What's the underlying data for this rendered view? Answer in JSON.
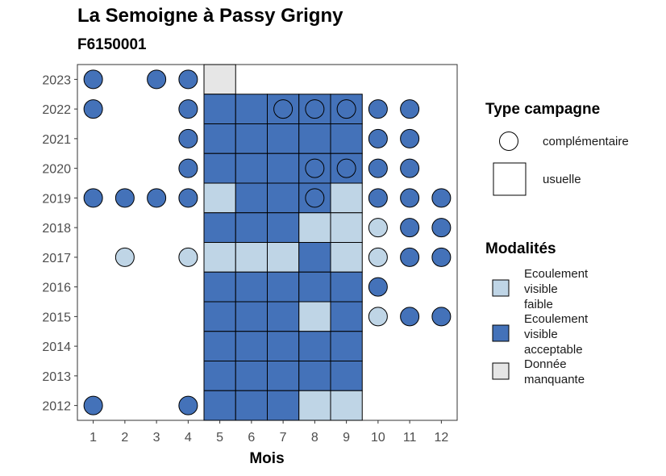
{
  "title": "La Semoigne à Passy Grigny",
  "subtitle": "F6150001",
  "colors": {
    "Ecoulement visible faible": "#bfd5e6",
    "Ecoulement visible acceptable": "#4472b9",
    "Donnée manquante": "#e6e6e6"
  },
  "chart_data": {
    "type": "heatmap",
    "xlabel": "Mois",
    "ylabel": "",
    "x_ticks": [
      1,
      2,
      3,
      4,
      5,
      6,
      7,
      8,
      9,
      10,
      11,
      12
    ],
    "y_ticks": [
      2012,
      2013,
      2014,
      2015,
      2016,
      2017,
      2018,
      2019,
      2020,
      2021,
      2022,
      2023
    ],
    "legend_type": {
      "title": "Type campagne",
      "items": [
        {
          "label": "complémentaire",
          "shape": "circle"
        },
        {
          "label": "usuelle",
          "shape": "square"
        }
      ]
    },
    "legend_modalites": {
      "title": "Modalités",
      "items": [
        {
          "label": "Ecoulement visible faible"
        },
        {
          "label": "Ecoulement visible acceptable"
        },
        {
          "label": "Donnée manquante"
        }
      ]
    },
    "usuelle": [
      {
        "year": 2023,
        "month": 5,
        "mod": "Donnée manquante"
      },
      {
        "year": 2022,
        "month": 5,
        "mod": "Ecoulement visible acceptable"
      },
      {
        "year": 2022,
        "month": 6,
        "mod": "Ecoulement visible acceptable"
      },
      {
        "year": 2022,
        "month": 7,
        "mod": "Ecoulement visible acceptable"
      },
      {
        "year": 2022,
        "month": 8,
        "mod": "Ecoulement visible acceptable"
      },
      {
        "year": 2022,
        "month": 9,
        "mod": "Ecoulement visible acceptable"
      },
      {
        "year": 2021,
        "month": 5,
        "mod": "Ecoulement visible acceptable"
      },
      {
        "year": 2021,
        "month": 6,
        "mod": "Ecoulement visible acceptable"
      },
      {
        "year": 2021,
        "month": 7,
        "mod": "Ecoulement visible acceptable"
      },
      {
        "year": 2021,
        "month": 8,
        "mod": "Ecoulement visible acceptable"
      },
      {
        "year": 2021,
        "month": 9,
        "mod": "Ecoulement visible acceptable"
      },
      {
        "year": 2020,
        "month": 5,
        "mod": "Ecoulement visible acceptable"
      },
      {
        "year": 2020,
        "month": 6,
        "mod": "Ecoulement visible acceptable"
      },
      {
        "year": 2020,
        "month": 7,
        "mod": "Ecoulement visible acceptable"
      },
      {
        "year": 2020,
        "month": 8,
        "mod": "Ecoulement visible acceptable"
      },
      {
        "year": 2020,
        "month": 9,
        "mod": "Ecoulement visible acceptable"
      },
      {
        "year": 2019,
        "month": 5,
        "mod": "Ecoulement visible faible"
      },
      {
        "year": 2019,
        "month": 6,
        "mod": "Ecoulement visible acceptable"
      },
      {
        "year": 2019,
        "month": 7,
        "mod": "Ecoulement visible acceptable"
      },
      {
        "year": 2019,
        "month": 8,
        "mod": "Ecoulement visible acceptable"
      },
      {
        "year": 2019,
        "month": 9,
        "mod": "Ecoulement visible faible"
      },
      {
        "year": 2018,
        "month": 5,
        "mod": "Ecoulement visible acceptable"
      },
      {
        "year": 2018,
        "month": 6,
        "mod": "Ecoulement visible acceptable"
      },
      {
        "year": 2018,
        "month": 7,
        "mod": "Ecoulement visible acceptable"
      },
      {
        "year": 2018,
        "month": 8,
        "mod": "Ecoulement visible faible"
      },
      {
        "year": 2018,
        "month": 9,
        "mod": "Ecoulement visible faible"
      },
      {
        "year": 2017,
        "month": 5,
        "mod": "Ecoulement visible faible"
      },
      {
        "year": 2017,
        "month": 6,
        "mod": "Ecoulement visible faible"
      },
      {
        "year": 2017,
        "month": 7,
        "mod": "Ecoulement visible faible"
      },
      {
        "year": 2017,
        "month": 8,
        "mod": "Ecoulement visible acceptable"
      },
      {
        "year": 2017,
        "month": 9,
        "mod": "Ecoulement visible faible"
      },
      {
        "year": 2016,
        "month": 5,
        "mod": "Ecoulement visible acceptable"
      },
      {
        "year": 2016,
        "month": 6,
        "mod": "Ecoulement visible acceptable"
      },
      {
        "year": 2016,
        "month": 7,
        "mod": "Ecoulement visible acceptable"
      },
      {
        "year": 2016,
        "month": 8,
        "mod": "Ecoulement visible acceptable"
      },
      {
        "year": 2016,
        "month": 9,
        "mod": "Ecoulement visible acceptable"
      },
      {
        "year": 2015,
        "month": 5,
        "mod": "Ecoulement visible acceptable"
      },
      {
        "year": 2015,
        "month": 6,
        "mod": "Ecoulement visible acceptable"
      },
      {
        "year": 2015,
        "month": 7,
        "mod": "Ecoulement visible acceptable"
      },
      {
        "year": 2015,
        "month": 8,
        "mod": "Ecoulement visible faible"
      },
      {
        "year": 2015,
        "month": 9,
        "mod": "Ecoulement visible acceptable"
      },
      {
        "year": 2014,
        "month": 5,
        "mod": "Ecoulement visible acceptable"
      },
      {
        "year": 2014,
        "month": 6,
        "mod": "Ecoulement visible acceptable"
      },
      {
        "year": 2014,
        "month": 7,
        "mod": "Ecoulement visible acceptable"
      },
      {
        "year": 2014,
        "month": 8,
        "mod": "Ecoulement visible acceptable"
      },
      {
        "year": 2014,
        "month": 9,
        "mod": "Ecoulement visible acceptable"
      },
      {
        "year": 2013,
        "month": 5,
        "mod": "Ecoulement visible acceptable"
      },
      {
        "year": 2013,
        "month": 6,
        "mod": "Ecoulement visible acceptable"
      },
      {
        "year": 2013,
        "month": 7,
        "mod": "Ecoulement visible acceptable"
      },
      {
        "year": 2013,
        "month": 8,
        "mod": "Ecoulement visible acceptable"
      },
      {
        "year": 2013,
        "month": 9,
        "mod": "Ecoulement visible acceptable"
      },
      {
        "year": 2012,
        "month": 5,
        "mod": "Ecoulement visible acceptable"
      },
      {
        "year": 2012,
        "month": 6,
        "mod": "Ecoulement visible acceptable"
      },
      {
        "year": 2012,
        "month": 7,
        "mod": "Ecoulement visible acceptable"
      },
      {
        "year": 2012,
        "month": 8,
        "mod": "Ecoulement visible faible"
      },
      {
        "year": 2012,
        "month": 9,
        "mod": "Ecoulement visible faible"
      }
    ],
    "complementaire": [
      {
        "year": 2023,
        "month": 1,
        "mod": "Ecoulement visible acceptable"
      },
      {
        "year": 2023,
        "month": 3,
        "mod": "Ecoulement visible acceptable"
      },
      {
        "year": 2023,
        "month": 4,
        "mod": "Ecoulement visible acceptable"
      },
      {
        "year": 2022,
        "month": 1,
        "mod": "Ecoulement visible acceptable"
      },
      {
        "year": 2022,
        "month": 4,
        "mod": "Ecoulement visible acceptable"
      },
      {
        "year": 2022,
        "month": 7,
        "mod": "Ecoulement visible acceptable"
      },
      {
        "year": 2022,
        "month": 8,
        "mod": "Ecoulement visible acceptable"
      },
      {
        "year": 2022,
        "month": 9,
        "mod": "Ecoulement visible acceptable"
      },
      {
        "year": 2022,
        "month": 10,
        "mod": "Ecoulement visible acceptable"
      },
      {
        "year": 2022,
        "month": 11,
        "mod": "Ecoulement visible acceptable"
      },
      {
        "year": 2021,
        "month": 4,
        "mod": "Ecoulement visible acceptable"
      },
      {
        "year": 2021,
        "month": 10,
        "mod": "Ecoulement visible acceptable"
      },
      {
        "year": 2021,
        "month": 11,
        "mod": "Ecoulement visible acceptable"
      },
      {
        "year": 2020,
        "month": 4,
        "mod": "Ecoulement visible acceptable"
      },
      {
        "year": 2020,
        "month": 8,
        "mod": "Ecoulement visible acceptable"
      },
      {
        "year": 2020,
        "month": 9,
        "mod": "Ecoulement visible acceptable"
      },
      {
        "year": 2020,
        "month": 10,
        "mod": "Ecoulement visible acceptable"
      },
      {
        "year": 2020,
        "month": 11,
        "mod": "Ecoulement visible acceptable"
      },
      {
        "year": 2019,
        "month": 1,
        "mod": "Ecoulement visible acceptable"
      },
      {
        "year": 2019,
        "month": 2,
        "mod": "Ecoulement visible acceptable"
      },
      {
        "year": 2019,
        "month": 3,
        "mod": "Ecoulement visible acceptable"
      },
      {
        "year": 2019,
        "month": 4,
        "mod": "Ecoulement visible acceptable"
      },
      {
        "year": 2019,
        "month": 8,
        "mod": "Ecoulement visible acceptable"
      },
      {
        "year": 2019,
        "month": 10,
        "mod": "Ecoulement visible acceptable"
      },
      {
        "year": 2019,
        "month": 11,
        "mod": "Ecoulement visible acceptable"
      },
      {
        "year": 2019,
        "month": 12,
        "mod": "Ecoulement visible acceptable"
      },
      {
        "year": 2018,
        "month": 10,
        "mod": "Ecoulement visible faible"
      },
      {
        "year": 2018,
        "month": 11,
        "mod": "Ecoulement visible acceptable"
      },
      {
        "year": 2018,
        "month": 12,
        "mod": "Ecoulement visible acceptable"
      },
      {
        "year": 2017,
        "month": 2,
        "mod": "Ecoulement visible faible"
      },
      {
        "year": 2017,
        "month": 4,
        "mod": "Ecoulement visible faible"
      },
      {
        "year": 2017,
        "month": 10,
        "mod": "Ecoulement visible faible"
      },
      {
        "year": 2017,
        "month": 11,
        "mod": "Ecoulement visible acceptable"
      },
      {
        "year": 2017,
        "month": 12,
        "mod": "Ecoulement visible acceptable"
      },
      {
        "year": 2016,
        "month": 10,
        "mod": "Ecoulement visible acceptable"
      },
      {
        "year": 2015,
        "month": 10,
        "mod": "Ecoulement visible faible"
      },
      {
        "year": 2015,
        "month": 11,
        "mod": "Ecoulement visible acceptable"
      },
      {
        "year": 2015,
        "month": 12,
        "mod": "Ecoulement visible acceptable"
      },
      {
        "year": 2012,
        "month": 1,
        "mod": "Ecoulement visible acceptable"
      },
      {
        "year": 2012,
        "month": 4,
        "mod": "Ecoulement visible acceptable"
      }
    ]
  }
}
